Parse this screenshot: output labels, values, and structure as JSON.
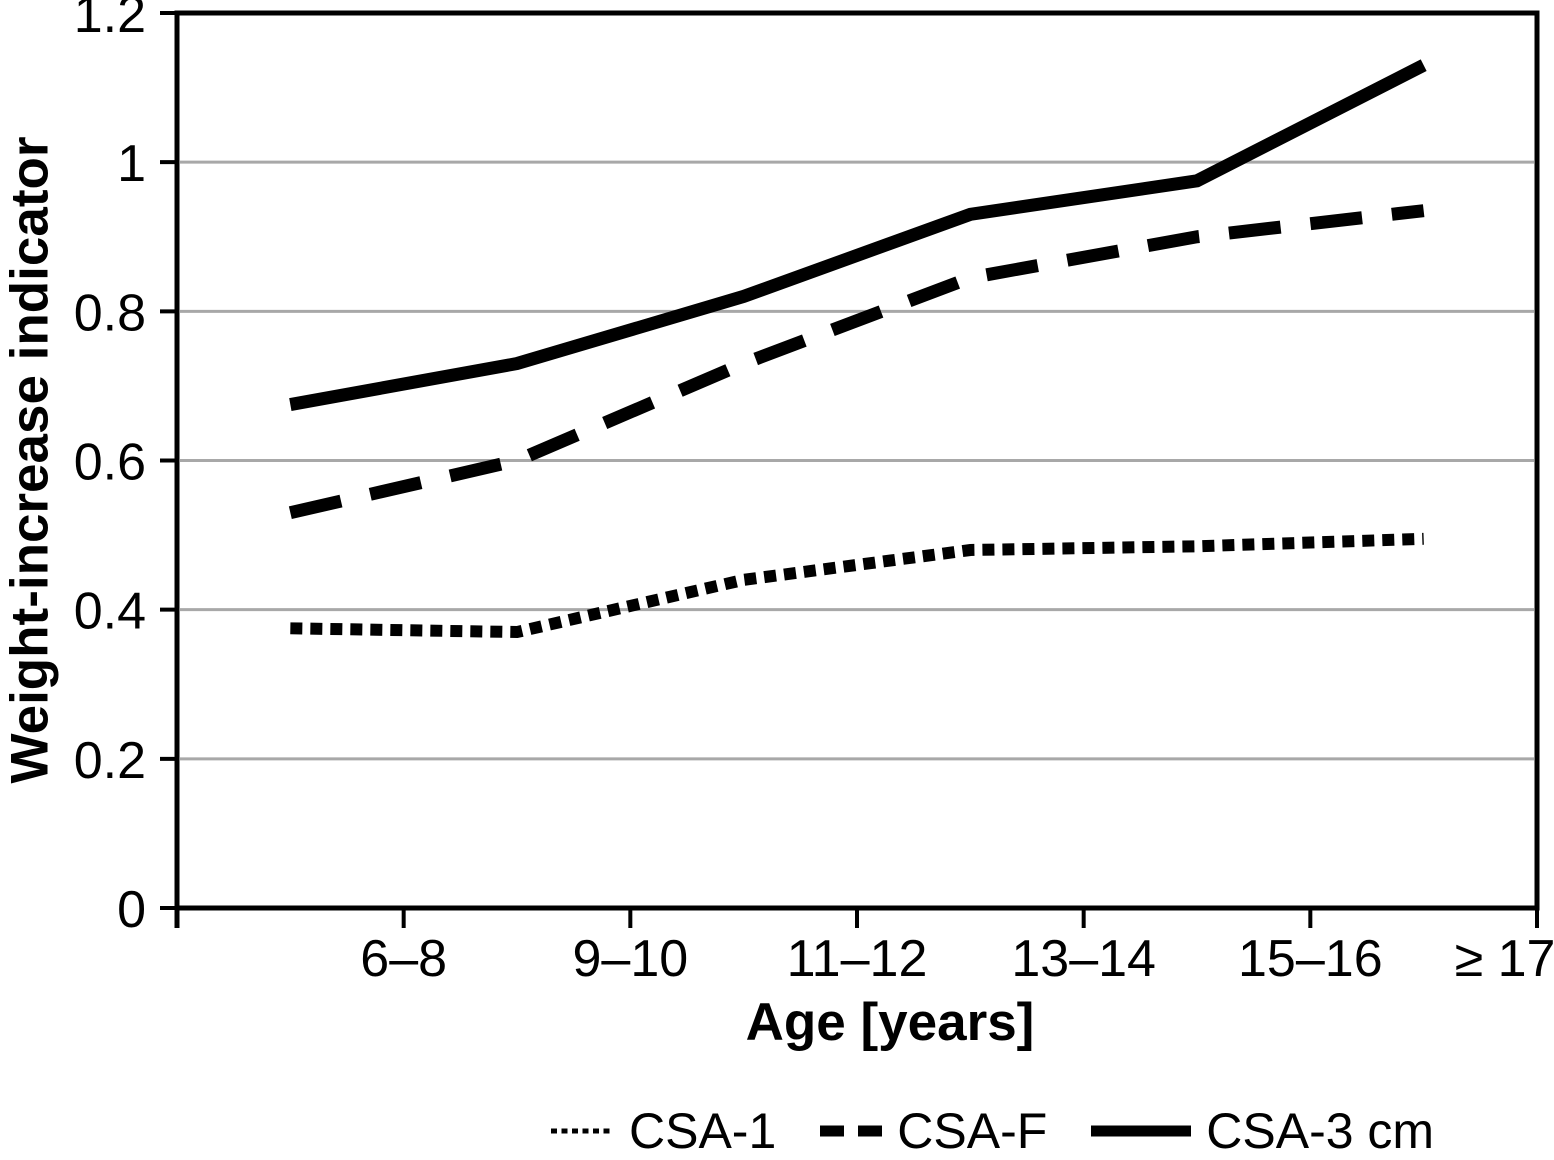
{
  "chart_data": {
    "type": "line",
    "title": "",
    "xlabel": "Age [years]",
    "ylabel": "Weight-increase indicator",
    "categories": [
      "6–8",
      "9–10",
      "11–12",
      "13–14",
      "15–16",
      "≥ 17"
    ],
    "ytick_labels": [
      "0",
      "0.2",
      "0.4",
      "0.6",
      "0.8",
      "1",
      "1.2"
    ],
    "ylim": [
      0,
      1.2
    ],
    "grid": "horizontal",
    "legend_position": "bottom",
    "series": [
      {
        "name": "CSA-1",
        "line_style": "dotted",
        "color": "#000000",
        "values": [
          0.375,
          0.37,
          0.44,
          0.48,
          0.485,
          0.495
        ]
      },
      {
        "name": "CSA-F",
        "line_style": "dashed",
        "color": "#000000",
        "values": [
          0.53,
          0.6,
          0.73,
          0.845,
          0.9,
          0.935
        ]
      },
      {
        "name": "CSA-3 cm",
        "line_style": "solid",
        "color": "#000000",
        "values": [
          0.675,
          0.73,
          0.82,
          0.93,
          0.975,
          1.13
        ]
      }
    ],
    "colors": {
      "line": "#000000",
      "grid": "#a8a8a8",
      "background": "#ffffff",
      "frame": "#000000"
    }
  }
}
